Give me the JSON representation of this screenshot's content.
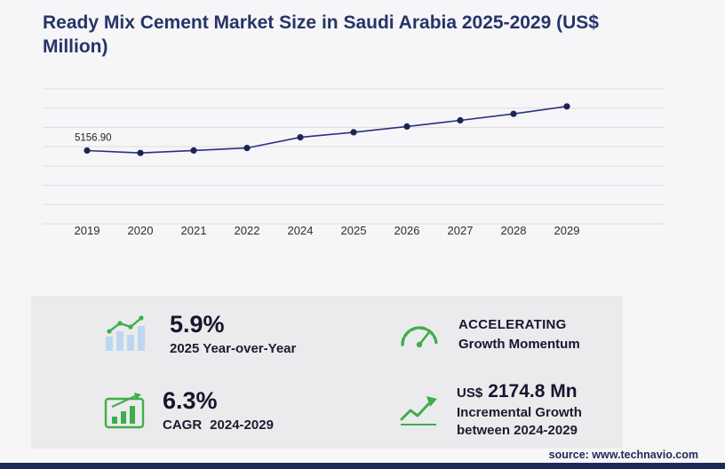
{
  "title": "Ready Mix Cement Market Size in Saudi Arabia 2025-2029 (US$ Million)",
  "chart_data": {
    "type": "line",
    "title": "Ready Mix Cement Market Size in Saudi Arabia 2025-2029 (US$ Million)",
    "xlabel": "",
    "ylabel": "US$ Million",
    "x": [
      "2019",
      "2020",
      "2021",
      "2022",
      "2024",
      "2025",
      "2026",
      "2027",
      "2028",
      "2029"
    ],
    "series": [
      {
        "name": "Market Size (US$ Million)",
        "values": [
          5156.9,
          4990,
          5160,
          5340,
          6085,
          6444,
          6849,
          7281,
          7740,
          8259.8
        ]
      }
    ],
    "first_point_label": "5156.90",
    "ylim": [
      0,
      9500
    ],
    "grid": "horizontal",
    "gridline_count": 8,
    "legend": "none",
    "line_color": "#2a2f86",
    "point_color": "#1e2452"
  },
  "stats": {
    "yoy": {
      "value": "5.9%",
      "label": "2025 Year-over-Year"
    },
    "momentum": {
      "line1": "ACCELERATING",
      "line2": "Growth Momentum"
    },
    "cagr": {
      "value": "6.3%",
      "label_prefix": "CAGR",
      "label_range": "2024-2029"
    },
    "incremental": {
      "currency": "US$",
      "value": "2174.8 Mn",
      "label_line1": "Incremental Growth",
      "label_line2": "between 2024-2029"
    }
  },
  "footer": {
    "source_prefix": "source:",
    "source_url": "www.technavio.com"
  },
  "colors": {
    "accent_green": "#3fae49",
    "navy": "#1d2a55",
    "bar_blue": "#bcd7f1",
    "panel_gray": "#ebebed"
  }
}
